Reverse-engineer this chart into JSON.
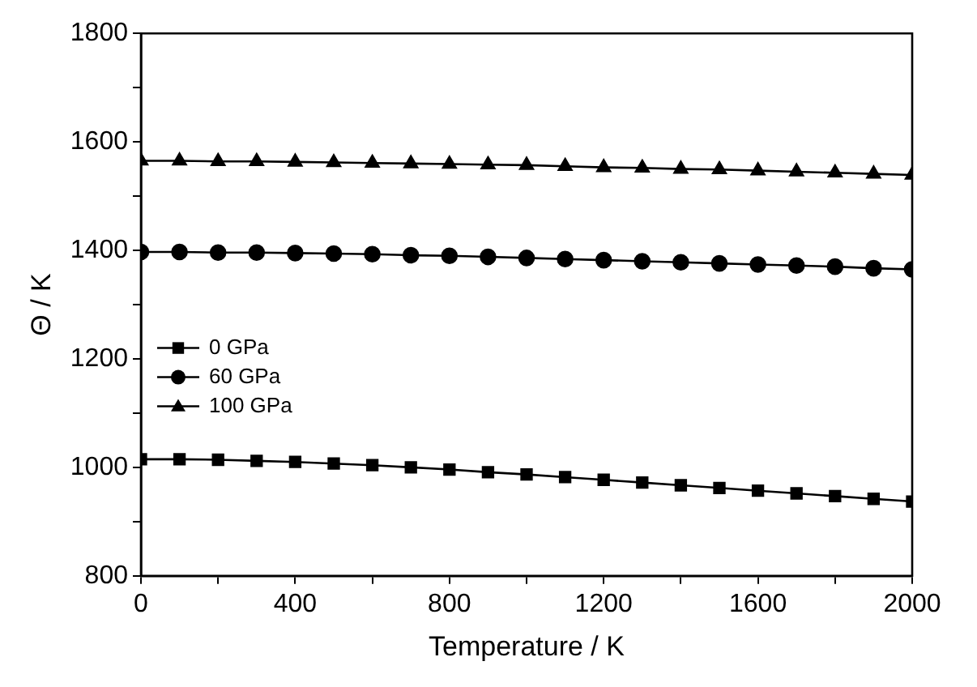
{
  "chart_data": {
    "type": "line",
    "xlabel": "Temperature / K",
    "ylabel": "Θ / K",
    "x": [
      0,
      100,
      200,
      300,
      400,
      500,
      600,
      700,
      800,
      900,
      1000,
      1100,
      1200,
      1300,
      1400,
      1500,
      1600,
      1700,
      1800,
      1900,
      2000
    ],
    "xlim": [
      0,
      2000
    ],
    "xticks": [
      0,
      {
        "value": 200,
        "label": null
      },
      400,
      {
        "value": 600,
        "label": null
      },
      800,
      {
        "value": 1000,
        "label": null
      },
      1200,
      {
        "value": 1400,
        "label": null
      },
      1600,
      {
        "value": 1800,
        "label": null
      },
      2000
    ],
    "ylim": [
      800,
      1800
    ],
    "yticks": [
      800,
      {
        "value": 900,
        "label": null
      },
      1000,
      {
        "value": 1100,
        "label": null
      },
      1200,
      {
        "value": 1300,
        "label": null
      },
      1400,
      {
        "value": 1500,
        "label": null
      },
      1600,
      {
        "value": 1700,
        "label": null
      },
      1800
    ],
    "grid": false,
    "legend": "center left",
    "line_style": "solid",
    "series": [
      {
        "name": "0 GPa",
        "color": "#000000",
        "marker": "square",
        "values": [
          1015,
          1015,
          1014,
          1012,
          1010,
          1007,
          1004,
          1000,
          996,
          991,
          987,
          982,
          977,
          972,
          967,
          962,
          957,
          952,
          947,
          942,
          937
        ]
      },
      {
        "name": "60 GPa",
        "color": "#000000",
        "marker": "circle",
        "values": [
          1397,
          1397,
          1396,
          1396,
          1395,
          1394,
          1393,
          1391,
          1390,
          1388,
          1386,
          1384,
          1382,
          1380,
          1378,
          1376,
          1374,
          1372,
          1370,
          1367,
          1365
        ]
      },
      {
        "name": "100 GPa",
        "color": "#000000",
        "marker": "triangle",
        "values": [
          1565,
          1565,
          1564,
          1564,
          1563,
          1562,
          1561,
          1560,
          1559,
          1558,
          1557,
          1555,
          1553,
          1552,
          1550,
          1549,
          1547,
          1545,
          1543,
          1541,
          1539
        ]
      }
    ]
  }
}
